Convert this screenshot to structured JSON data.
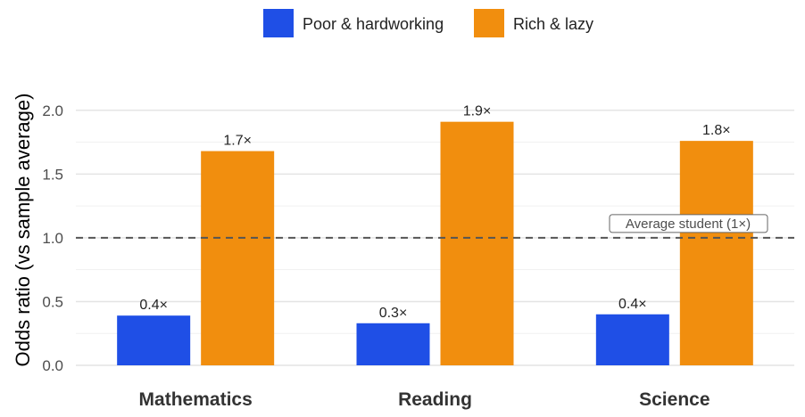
{
  "chart_data": {
    "type": "bar",
    "title": "",
    "xlabel": "",
    "ylabel": "Odds ratio (vs sample average)",
    "categories": [
      "Mathematics",
      "Reading",
      "Science"
    ],
    "series": [
      {
        "name": "Poor & hardworking",
        "color": "#1f4fe6",
        "values": [
          0.39,
          0.33,
          0.4
        ],
        "labels": [
          "0.4×",
          "0.3×",
          "0.4×"
        ]
      },
      {
        "name": "Rich & lazy",
        "color": "#f18e0e",
        "values": [
          1.68,
          1.91,
          1.76
        ],
        "labels": [
          "1.7×",
          "1.9×",
          "1.8×"
        ]
      }
    ],
    "ylim": [
      0,
      2.25
    ],
    "yticks": [
      "0.0",
      "0.5",
      "1.0",
      "1.5",
      "2.0"
    ],
    "grid": true,
    "legend_position": "top-center",
    "reference_line": {
      "value": 1.0,
      "label": "Average student (1×)",
      "style": "dashed",
      "color": "#555555"
    }
  }
}
